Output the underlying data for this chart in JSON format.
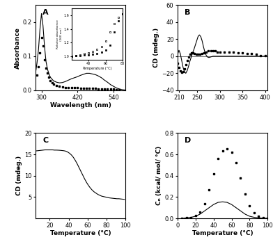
{
  "panel_A": {
    "label": "A",
    "solid_x": [
      280,
      285,
      290,
      295,
      300,
      305,
      310,
      315,
      320,
      325,
      330,
      340,
      350,
      360,
      370,
      380,
      390,
      400,
      410,
      420,
      430,
      440,
      450,
      460,
      470,
      480,
      490,
      500,
      510,
      520,
      530,
      540,
      550,
      560,
      570,
      580
    ],
    "solid_y": [
      0.05,
      0.08,
      0.12,
      0.18,
      0.225,
      0.19,
      0.13,
      0.085,
      0.062,
      0.048,
      0.038,
      0.028,
      0.024,
      0.022,
      0.023,
      0.026,
      0.03,
      0.034,
      0.037,
      0.04,
      0.044,
      0.047,
      0.05,
      0.05,
      0.048,
      0.046,
      0.042,
      0.037,
      0.03,
      0.024,
      0.017,
      0.012,
      0.007,
      0.004,
      0.002,
      0.001
    ],
    "dot_x": [
      285,
      290,
      295,
      300,
      305,
      310,
      315,
      320,
      325,
      330,
      335,
      340,
      350,
      360,
      370,
      380,
      390,
      400,
      410,
      420,
      430,
      440,
      450,
      460,
      470,
      480,
      490,
      500,
      510,
      520,
      530,
      540,
      550,
      560
    ],
    "dot_y": [
      0.045,
      0.07,
      0.11,
      0.155,
      0.13,
      0.09,
      0.065,
      0.05,
      0.038,
      0.028,
      0.022,
      0.018,
      0.014,
      0.012,
      0.01,
      0.009,
      0.008,
      0.008,
      0.008,
      0.008,
      0.007,
      0.007,
      0.007,
      0.006,
      0.006,
      0.006,
      0.005,
      0.005,
      0.004,
      0.004,
      0.003,
      0.003,
      0.002,
      0.002
    ],
    "xlabel": "Wavelength (nm)",
    "ylabel": "Absorbance",
    "xlim": [
      280,
      580
    ],
    "ylim": [
      0.0,
      0.25
    ],
    "yticks": [
      0.0,
      0.1,
      0.2
    ],
    "xticks": [
      300,
      420,
      540
    ],
    "inset": {
      "open_x": [
        20,
        25,
        30,
        35,
        40,
        45,
        50,
        55,
        60,
        65,
        70,
        75,
        80
      ],
      "open_y": [
        1.0,
        1.01,
        1.02,
        1.035,
        1.05,
        1.07,
        1.1,
        1.14,
        1.22,
        1.35,
        1.48,
        1.57,
        1.62
      ],
      "fill_x": [
        20,
        25,
        30,
        35,
        40,
        45,
        50,
        55,
        60,
        65,
        70,
        75,
        80
      ],
      "fill_y": [
        1.0,
        1.005,
        1.01,
        1.015,
        1.02,
        1.03,
        1.04,
        1.06,
        1.09,
        1.16,
        1.35,
        1.52,
        1.62
      ],
      "xlabel": "Temperature (°C)",
      "ylabel": "Relative absorbance\n(260 nm)",
      "xlim": [
        20,
        80
      ],
      "ylim": [
        0.95,
        1.7
      ],
      "xticks": [
        40,
        60,
        80
      ],
      "yticks": [
        1.0,
        1.2,
        1.4,
        1.6
      ]
    }
  },
  "panel_B": {
    "label": "B",
    "solid_x": [
      207,
      210,
      213,
      216,
      219,
      222,
      225,
      228,
      231,
      234,
      237,
      240,
      243,
      246,
      249,
      252,
      255,
      258,
      261,
      264,
      267,
      270,
      273,
      276,
      279,
      282,
      285,
      288,
      291,
      294,
      297,
      300,
      310,
      320,
      330,
      340,
      350,
      360,
      370,
      380,
      390,
      400
    ],
    "solid_y": [
      2,
      7,
      3,
      -5,
      -13,
      -18,
      -20,
      -17,
      -12,
      -6,
      -1,
      4,
      8,
      13,
      18,
      23,
      25,
      23,
      18,
      11,
      5,
      1,
      -1,
      -1.5,
      -1,
      -0.5,
      0,
      0,
      0,
      0,
      0,
      0,
      0,
      0,
      0,
      0,
      0,
      0,
      0,
      0,
      0,
      0
    ],
    "dot_x": [
      207,
      210,
      213,
      216,
      219,
      222,
      225,
      228,
      231,
      234,
      237,
      240,
      244,
      248,
      252,
      256,
      260,
      265,
      270,
      275,
      280,
      285,
      290,
      295,
      300,
      310,
      320,
      330,
      340,
      350,
      360,
      370,
      380,
      390,
      400
    ],
    "dot_y": [
      -8,
      -13,
      -17,
      -19,
      -18,
      -15,
      -10,
      -5,
      -1,
      2,
      4,
      4,
      3,
      2,
      2,
      2,
      3,
      4,
      5,
      6,
      6,
      6,
      6,
      5,
      5,
      5,
      5,
      5,
      4,
      4,
      3,
      3,
      2,
      1,
      1
    ],
    "ylabel": "CD (mdeg.)",
    "xlim": [
      207,
      405
    ],
    "ylim": [
      -40,
      60
    ],
    "yticks": [
      -40,
      -20,
      0,
      20,
      40,
      60
    ],
    "xticks": [
      210,
      250,
      300,
      350,
      400
    ]
  },
  "panel_C": {
    "label": "C",
    "x": [
      5,
      7,
      9,
      11,
      13,
      15,
      17,
      19,
      21,
      23,
      25,
      27,
      29,
      31,
      33,
      35,
      37,
      39,
      41,
      43,
      45,
      47,
      49,
      51,
      53,
      55,
      57,
      59,
      61,
      63,
      65,
      67,
      69,
      71,
      73,
      75,
      77,
      79,
      81,
      83,
      85,
      87,
      89,
      91,
      93,
      95,
      97,
      99
    ],
    "y": [
      15.8,
      15.85,
      15.9,
      15.95,
      16.0,
      16.05,
      16.05,
      16.05,
      16.05,
      16.05,
      16.0,
      16.0,
      15.98,
      15.95,
      15.9,
      15.85,
      15.75,
      15.55,
      15.25,
      14.85,
      14.3,
      13.6,
      12.8,
      11.9,
      11.0,
      10.1,
      9.2,
      8.4,
      7.7,
      7.1,
      6.6,
      6.2,
      5.9,
      5.6,
      5.4,
      5.2,
      5.1,
      5.0,
      4.9,
      4.8,
      4.75,
      4.7,
      4.65,
      4.6,
      4.6,
      4.55,
      4.5,
      4.45
    ],
    "xlabel": "Temperature (°C)",
    "ylabel": "CD (mdeg.)",
    "xlim": [
      5,
      100
    ],
    "ylim": [
      0,
      20
    ],
    "yticks": [
      5,
      10,
      15,
      20
    ],
    "xticks": [
      20,
      40,
      60,
      80,
      100
    ]
  },
  "panel_D": {
    "label": "D",
    "solid_x": [
      5,
      10,
      15,
      20,
      25,
      30,
      35,
      40,
      45,
      50,
      55,
      60,
      65,
      70,
      75,
      80,
      85,
      90,
      95,
      100
    ],
    "solid_y": [
      0.0,
      0.005,
      0.01,
      0.02,
      0.04,
      0.07,
      0.1,
      0.13,
      0.15,
      0.155,
      0.15,
      0.13,
      0.1,
      0.07,
      0.04,
      0.02,
      0.01,
      0.005,
      0.002,
      0.001
    ],
    "dot_x": [
      5,
      10,
      15,
      20,
      25,
      30,
      35,
      40,
      45,
      50,
      55,
      60,
      65,
      70,
      75,
      80,
      85,
      90,
      95,
      100
    ],
    "dot_y": [
      0.0,
      0.005,
      0.01,
      0.025,
      0.06,
      0.14,
      0.27,
      0.42,
      0.56,
      0.63,
      0.65,
      0.62,
      0.52,
      0.38,
      0.23,
      0.12,
      0.05,
      0.02,
      0.008,
      0.002
    ],
    "xlabel": "Temperature (°C)",
    "ylabel": "Cₙ (kcal/ mol/ °C)",
    "xlim": [
      0,
      100
    ],
    "ylim": [
      0,
      0.8
    ],
    "yticks": [
      0.0,
      0.2,
      0.4,
      0.6,
      0.8
    ],
    "xticks": [
      0,
      20,
      40,
      60,
      80,
      100
    ]
  }
}
